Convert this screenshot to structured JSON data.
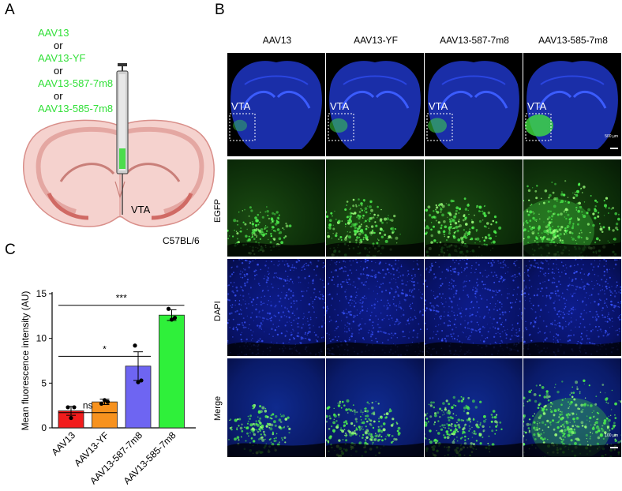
{
  "panels": {
    "a": "A",
    "b": "B",
    "c": "C"
  },
  "panel_a": {
    "vectors": [
      "AAV13",
      "AAV13-YF",
      "AAV13-587-7m8",
      "AAV13-585-7m8"
    ],
    "or_label": "or",
    "region": "VTA",
    "strain": "C57BL/6"
  },
  "panel_b": {
    "columns": [
      "AAV13",
      "AAV13-YF",
      "AAV13-587-7m8",
      "AAV13-585-7m8"
    ],
    "rows": [
      "EGFP",
      "DAPI",
      "Merge"
    ],
    "vta_label": "VTA",
    "scale_top": "500 µm",
    "scale_bottom": "100 µm",
    "colors": {
      "dapi": "#1030c8",
      "egfp": "#40e040",
      "background": "#000000"
    },
    "egfp_intensity": [
      0.25,
      0.45,
      0.5,
      1.0
    ]
  },
  "chart_data": {
    "type": "bar",
    "categories": [
      "AAV13",
      "AAV13-YF",
      "AAV13-587-7m8",
      "AAV13-585-7m8"
    ],
    "values": [
      1.9,
      2.9,
      6.9,
      12.6
    ],
    "errors": [
      0.5,
      0.3,
      1.6,
      0.6
    ],
    "points": [
      [
        2.3,
        1.1,
        2.3
      ],
      [
        2.7,
        3.1,
        2.9
      ],
      [
        9.2,
        5.1,
        5.3
      ],
      [
        13.3,
        12.1,
        12.3
      ]
    ],
    "colors": [
      "#f21c1c",
      "#f7921e",
      "#6e65f2",
      "#2ff03a"
    ],
    "ylabel": "Mean fluorescence intensity (AU)",
    "ylim": [
      0,
      15
    ],
    "yticks": [
      0,
      5,
      10,
      15
    ],
    "significance": [
      {
        "from": 0,
        "to": 1,
        "label": "ns"
      },
      {
        "from": 0,
        "to": 2,
        "label": "*"
      },
      {
        "from": 0,
        "to": 3,
        "label": "***"
      }
    ]
  }
}
